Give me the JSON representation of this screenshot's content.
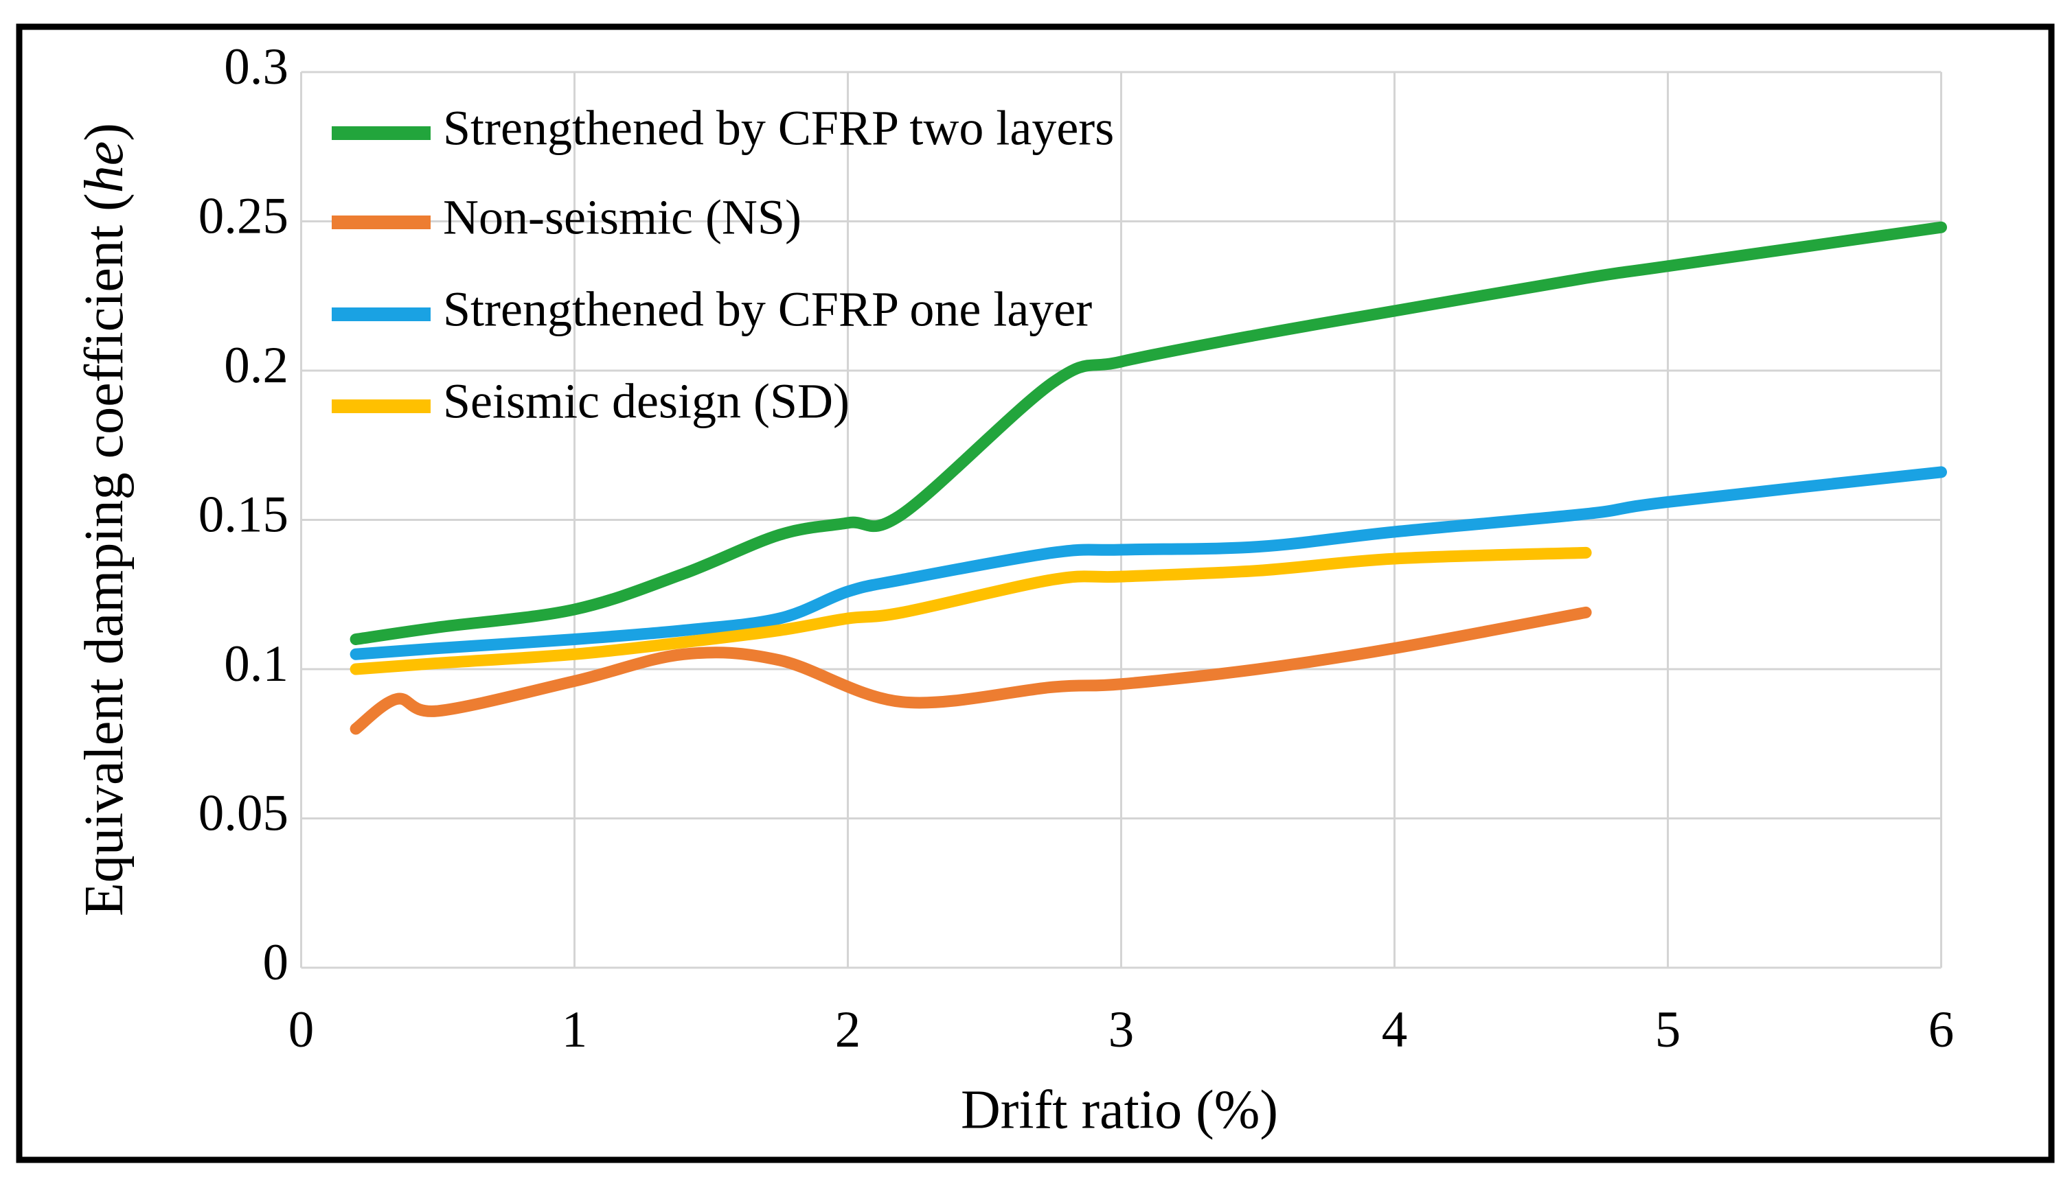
{
  "figure": {
    "background": "#ffffff",
    "border_color": "#000000"
  },
  "chart_data": {
    "type": "line",
    "title": "",
    "xlabel": "Drift ratio (%)",
    "ylabel": "Equivalent damping coefficient (he)",
    "ylabel_parts": {
      "prefix": "Equivalent damping coefficient (",
      "italic": "he",
      "suffix": ")"
    },
    "x_axis": {
      "min": 0,
      "max": 6,
      "tick_labels": [
        "0",
        "1",
        "2",
        "3",
        "4",
        "5",
        "6"
      ]
    },
    "y_axis": {
      "min": 0,
      "max": 0.3,
      "tick_labels": [
        "0",
        "0.05",
        "0.1",
        "0.15",
        "0.2",
        "0.25",
        "0.3"
      ]
    },
    "grid": true,
    "legend_position": "top-left-inside",
    "gridline_color": "#D4D4D4",
    "series": [
      {
        "name": "cfrp-two-layers",
        "label": "Strengthened by CFRP two layers",
        "color": "#22A53C",
        "points": [
          [
            0.2,
            0.11
          ],
          [
            0.5,
            0.114
          ],
          [
            1,
            0.12
          ],
          [
            1.4,
            0.132
          ],
          [
            1.75,
            0.145
          ],
          [
            2,
            0.149
          ],
          [
            2.2,
            0.152
          ],
          [
            2.75,
            0.196
          ],
          [
            3,
            0.203
          ],
          [
            3.5,
            0.212
          ],
          [
            4,
            0.22
          ],
          [
            4.7,
            0.231
          ],
          [
            5,
            0.235
          ],
          [
            6,
            0.248
          ]
        ]
      },
      {
        "name": "non-seismic",
        "label": "Non-seismic (NS)",
        "color": "#ED7D31",
        "points": [
          [
            0.2,
            0.08
          ],
          [
            0.35,
            0.09
          ],
          [
            0.5,
            0.086
          ],
          [
            1,
            0.096
          ],
          [
            1.4,
            0.105
          ],
          [
            1.75,
            0.103
          ],
          [
            2.2,
            0.089
          ],
          [
            2.75,
            0.094
          ],
          [
            3,
            0.095
          ],
          [
            3.5,
            0.1
          ],
          [
            4,
            0.107
          ],
          [
            4.7,
            0.119
          ]
        ]
      },
      {
        "name": "cfrp-one-layer",
        "label": "Strengthened by CFRP one layer",
        "color": "#1AA2E3",
        "points": [
          [
            0.2,
            0.105
          ],
          [
            0.5,
            0.107
          ],
          [
            1,
            0.11
          ],
          [
            1.4,
            0.113
          ],
          [
            1.75,
            0.117
          ],
          [
            2,
            0.126
          ],
          [
            2.2,
            0.13
          ],
          [
            2.75,
            0.139
          ],
          [
            3,
            0.14
          ],
          [
            3.5,
            0.141
          ],
          [
            4,
            0.146
          ],
          [
            4.7,
            0.152
          ],
          [
            5,
            0.156
          ],
          [
            6,
            0.166
          ]
        ]
      },
      {
        "name": "seismic-design",
        "label": "Seismic design (SD)",
        "color": "#FFC000",
        "points": [
          [
            0.2,
            0.1
          ],
          [
            0.5,
            0.102
          ],
          [
            1,
            0.105
          ],
          [
            1.4,
            0.109
          ],
          [
            1.75,
            0.113
          ],
          [
            2,
            0.117
          ],
          [
            2.2,
            0.119
          ],
          [
            2.75,
            0.13
          ],
          [
            3,
            0.131
          ],
          [
            3.5,
            0.133
          ],
          [
            4,
            0.137
          ],
          [
            4.7,
            0.139
          ]
        ]
      }
    ]
  }
}
